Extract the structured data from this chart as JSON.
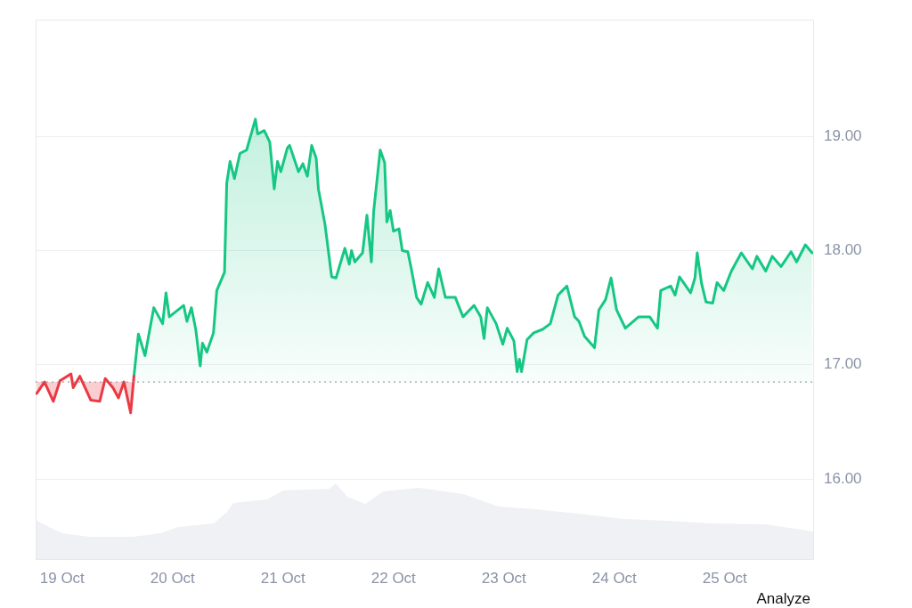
{
  "chart_data": {
    "type": "area",
    "x": [
      "--10-18T18:29",
      "--10-18T20:10",
      "--10-18T22:05",
      "--10-18T23:31",
      "--10-19T01:55",
      "--10-19T02:24",
      "--10-19T03:50",
      "--10-19T06:14",
      "--10-19T08:10",
      "--10-19T09:22",
      "--10-19T11:02",
      "--10-19T12:14",
      "--10-19T13:26",
      "--10-19T14:53",
      "--10-19T15:36",
      "--10-19T16:34",
      "--10-19T18:00",
      "--10-19T19:55",
      "--10-19T21:50",
      "--10-19T22:34",
      "--10-19T23:17",
      "--10-20T02:24",
      "--10-20T03:07",
      "--10-20T04:05",
      "--10-20T05:02",
      "--10-20T06:00",
      "--10-20T06:29",
      "--10-20T07:26",
      "--10-20T08:53",
      "--10-20T09:36",
      "--10-20T11:17",
      "--10-20T11:46",
      "--10-20T12:29",
      "--10-20T13:26",
      "--10-20T14:38",
      "--10-20T16:05",
      "--10-20T18:00",
      "--10-20T18:29",
      "--10-20T19:55",
      "--10-20T21:07",
      "--10-20T22:05",
      "--10-20T22:48",
      "--10-20T23:31",
      "--10-21T00:58",
      "--10-21T01:26",
      "--10-21T03:22",
      "--10-21T04:19",
      "--10-21T05:17",
      "--10-21T06:14",
      "--10-21T07:12",
      "--10-21T07:41",
      "--10-21T09:07",
      "--10-21T10:34",
      "--10-21T11:31",
      "--10-21T13:26",
      "--10-21T14:24",
      "--10-21T14:53",
      "--10-21T15:36",
      "--10-21T17:17",
      "--10-21T18:14",
      "--10-21T19:12",
      "--10-21T19:41",
      "--10-21T21:07",
      "--10-21T22:05",
      "--10-21T22:34",
      "--10-21T23:17",
      "--10-22T00:00",
      "--10-22T01:12",
      "--10-22T01:55",
      "--10-22T03:07",
      "--10-22T03:50",
      "--10-22T05:02",
      "--10-22T06:00",
      "--10-22T07:26",
      "--10-22T08:53",
      "--10-22T09:50",
      "--10-22T11:17",
      "--10-22T13:26",
      "--10-22T15:07",
      "--10-22T17:31",
      "--10-22T18:58",
      "--10-22T19:41",
      "--10-22T20:24",
      "--10-22T22:19",
      "--10-22T23:46",
      "--10-23T00:43",
      "--10-23T02:10",
      "--10-23T02:53",
      "--10-23T03:22",
      "--10-23T03:50",
      "--10-23T05:02",
      "--10-23T06:29",
      "--10-23T08:24",
      "--10-23T10:05",
      "--10-23T11:46",
      "--10-23T12:43",
      "--10-23T13:41",
      "--10-23T15:22",
      "--10-23T16:19",
      "--10-23T17:31",
      "--10-23T19:41",
      "--10-23T20:38",
      "--10-23T22:05",
      "--10-23T23:17",
      "--10-24T00:29",
      "--10-24T02:24",
      "--10-24T05:17",
      "--10-24T07:41",
      "--10-24T09:22",
      "--10-24T10:05",
      "--10-24T12:14",
      "--10-24T13:12",
      "--10-24T14:10",
      "--10-24T16:34",
      "--10-24T17:31",
      "--10-24T18:00",
      "--10-24T18:58",
      "--10-24T19:55",
      "--10-24T21:22",
      "--10-24T22:19",
      "--10-24T23:46",
      "--10-25T01:26",
      "--10-25T03:36",
      "--10-25T06:00",
      "--10-25T06:58",
      "--10-25T08:53",
      "--10-25T10:19",
      "--10-25T12:14",
      "--10-25T14:24",
      "--10-25T15:36",
      "--10-25T17:31",
      "--10-25T18:58"
    ],
    "series": [
      {
        "color": "#ea3943",
        "values": [
          16.75,
          16.85,
          16.68,
          16.86,
          16.92,
          16.8,
          16.9,
          16.69,
          16.68,
          16.88,
          16.8,
          16.71,
          16.85,
          16.58,
          16.9,
          null,
          null,
          null,
          null,
          null,
          null,
          null,
          null,
          null,
          null,
          null,
          null,
          null,
          null,
          null,
          null,
          null,
          null,
          null,
          null,
          null,
          null,
          null,
          null,
          null,
          null,
          null,
          null,
          null,
          null,
          null,
          null,
          null,
          null,
          null,
          null,
          null,
          null,
          null,
          null,
          null,
          null,
          null,
          null,
          null,
          null,
          null,
          null,
          null,
          null,
          null,
          null,
          null,
          null,
          null,
          null,
          null,
          null,
          null,
          null,
          null,
          null,
          null,
          null,
          null,
          null,
          null,
          null,
          null,
          null,
          null,
          null,
          null,
          null,
          null,
          null,
          null,
          null,
          null,
          null,
          null,
          null,
          null,
          null,
          null,
          null,
          null,
          null,
          null,
          null,
          null,
          null,
          null,
          null,
          null,
          null,
          null,
          null,
          null,
          null,
          null,
          null,
          null,
          null,
          null,
          null,
          null,
          null,
          null,
          null,
          null,
          null,
          null,
          null,
          null,
          null,
          null
        ]
      },
      {
        "color": "#16c784",
        "values": [
          null,
          null,
          null,
          null,
          null,
          null,
          null,
          null,
          null,
          null,
          null,
          null,
          null,
          null,
          16.9,
          17.27,
          17.08,
          17.5,
          17.36,
          17.63,
          17.42,
          17.52,
          17.38,
          17.5,
          17.31,
          16.99,
          17.19,
          17.11,
          17.28,
          17.65,
          17.81,
          18.59,
          18.78,
          18.63,
          18.85,
          18.88,
          19.15,
          19.02,
          19.05,
          18.95,
          18.54,
          18.78,
          18.69,
          18.9,
          18.92,
          18.69,
          18.76,
          18.65,
          18.92,
          18.81,
          18.54,
          18.23,
          17.77,
          17.76,
          18.02,
          17.88,
          18.0,
          17.9,
          17.98,
          18.31,
          17.9,
          18.34,
          18.88,
          18.77,
          18.25,
          18.35,
          18.17,
          18.19,
          18.0,
          17.99,
          17.85,
          17.59,
          17.53,
          17.72,
          17.59,
          17.84,
          17.59,
          17.59,
          17.42,
          17.52,
          17.42,
          17.23,
          17.5,
          17.36,
          17.18,
          17.32,
          17.21,
          16.94,
          17.05,
          16.94,
          17.22,
          17.28,
          17.31,
          17.36,
          17.61,
          17.65,
          17.69,
          17.42,
          17.38,
          17.25,
          17.15,
          17.48,
          17.57,
          17.76,
          17.48,
          17.32,
          17.42,
          17.42,
          17.32,
          17.65,
          17.69,
          17.61,
          17.77,
          17.63,
          17.76,
          17.98,
          17.71,
          17.55,
          17.54,
          17.72,
          17.65,
          17.82,
          17.98,
          17.84,
          17.95,
          17.82,
          17.95,
          17.86,
          17.99,
          17.9,
          18.05,
          17.98
        ]
      }
    ],
    "xlim": [
      "--10-18T18:14",
      "--10-25T19:12"
    ],
    "xticks": [
      {
        "value": "--10-19",
        "label": "19 Oct"
      },
      {
        "value": "--10-20",
        "label": "20 Oct"
      },
      {
        "value": "--10-21",
        "label": "21 Oct"
      },
      {
        "value": "--10-22",
        "label": "22 Oct"
      },
      {
        "value": "--10-23",
        "label": "23 Oct"
      },
      {
        "value": "--10-24",
        "label": "24 Oct"
      },
      {
        "value": "--10-25",
        "label": "25 Oct"
      }
    ],
    "ylim": [
      15.3,
      20.02
    ],
    "yticks": [
      {
        "value": 16,
        "label": "16.00"
      },
      {
        "value": 17,
        "label": "17.00"
      },
      {
        "value": 18,
        "label": "18.00"
      },
      {
        "value": 19,
        "label": "19.00"
      }
    ],
    "ref_lines": [
      {
        "axis": "y",
        "value": 16.85,
        "color": "#9aa0a8",
        "line_style": "dotted"
      }
    ],
    "grid": "y",
    "legend": false,
    "marker": "none",
    "line_style": "solid",
    "annotations": [
      "Analyze"
    ]
  }
}
